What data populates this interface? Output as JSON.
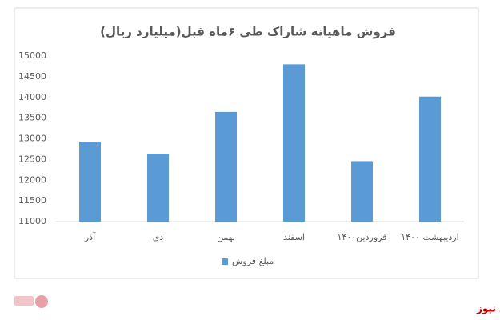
{
  "chart_data": {
    "type": "bar",
    "title": "فروش ماهیانه شاراک طی ۶ماه قبل(میلیارد ریال)",
    "categories": [
      "آذر",
      "دی",
      "بهمن",
      "اسفند",
      "فروردین۱۴۰۰",
      "اردیبهشت ۱۴۰۰"
    ],
    "series": [
      {
        "name": "مبلغ فروش",
        "color": "#5b9bd5",
        "values": [
          12930,
          12640,
          13650,
          14800,
          12460,
          14020
        ]
      }
    ],
    "ylim": [
      11000,
      15000
    ],
    "yticks": [
      11000,
      11500,
      12000,
      12500,
      13000,
      13500,
      14000,
      14500,
      15000
    ],
    "grid": false,
    "legend": "bottom"
  },
  "footer": {
    "source": "بورس نیوز"
  }
}
